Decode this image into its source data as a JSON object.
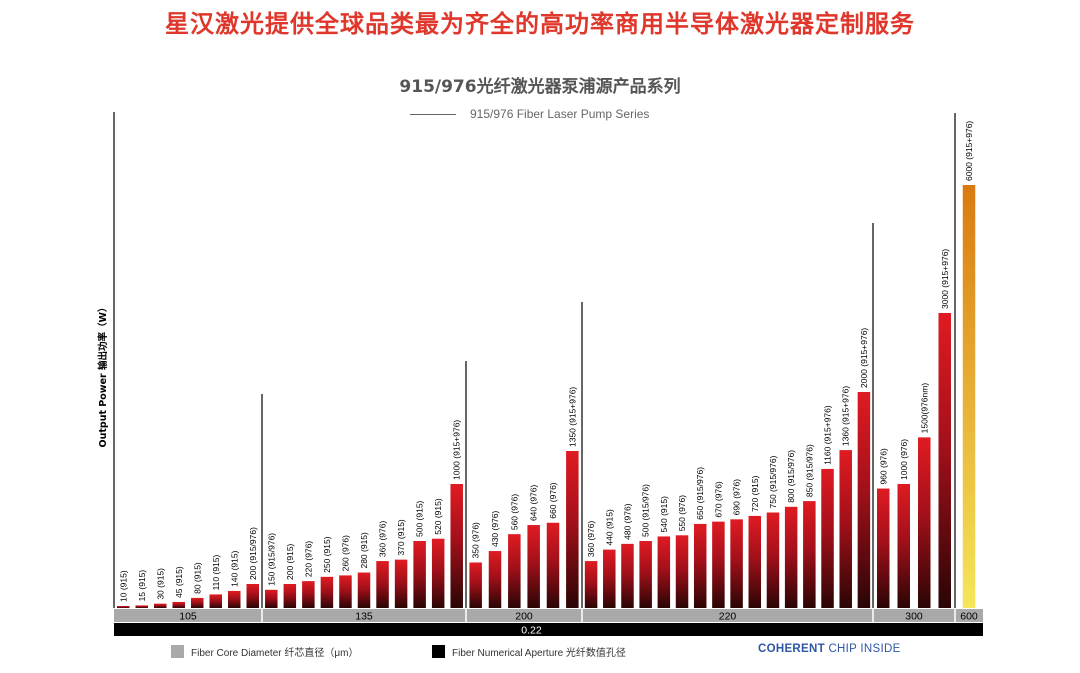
{
  "headline": "星汉激光提供全球品类最为齐全的高功率商用半导体激光器定制服务",
  "chart_data": {
    "type": "bar",
    "title": "915/976光纤激光器泵浦源产品系列",
    "subtitle": "915/976 Fiber Laser Pump Series",
    "ylabel": "Output Power  输出功率（W）",
    "numerical_aperture": "0.22",
    "groups": [
      {
        "core": "105",
        "bars": [
          {
            "value": 10,
            "label": "10 (915)"
          },
          {
            "value": 15,
            "label": "15 (915)"
          },
          {
            "value": 30,
            "label": "30 (915)"
          },
          {
            "value": 45,
            "label": "45 (915)"
          },
          {
            "value": 80,
            "label": "80 (915)"
          },
          {
            "value": 110,
            "label": "110 (915)"
          },
          {
            "value": 140,
            "label": "140 (915)"
          },
          {
            "value": 200,
            "label": "200 (915/976)"
          }
        ]
      },
      {
        "core": "135",
        "bars": [
          {
            "value": 150,
            "label": "150 (915/976)"
          },
          {
            "value": 200,
            "label": "200 (915)"
          },
          {
            "value": 220,
            "label": "220 (976)"
          },
          {
            "value": 250,
            "label": "250 (915)"
          },
          {
            "value": 260,
            "label": "260 (976)"
          },
          {
            "value": 280,
            "label": "280 (915)"
          },
          {
            "value": 360,
            "label": "360 (976)"
          },
          {
            "value": 370,
            "label": "370 (915)"
          },
          {
            "value": 500,
            "label": "500 (915)"
          },
          {
            "value": 520,
            "label": "520 (915)"
          },
          {
            "value": 1000,
            "label": "1000 (915+976)"
          }
        ]
      },
      {
        "core": "200",
        "bars": [
          {
            "value": 350,
            "label": "350 (976)"
          },
          {
            "value": 430,
            "label": "430 (976)"
          },
          {
            "value": 560,
            "label": "560 (976)"
          },
          {
            "value": 640,
            "label": "640 (976)"
          },
          {
            "value": 660,
            "label": "660 (976)"
          },
          {
            "value": 1350,
            "label": "1350 (915+976)"
          }
        ]
      },
      {
        "core": "220",
        "bars": [
          {
            "value": 360,
            "label": "360 (976)"
          },
          {
            "value": 440,
            "label": "440 (915)"
          },
          {
            "value": 480,
            "label": "480 (976)"
          },
          {
            "value": 500,
            "label": "500 (915/976)"
          },
          {
            "value": 540,
            "label": "540 (915)"
          },
          {
            "value": 550,
            "label": "550 (976)"
          },
          {
            "value": 650,
            "label": "650 (915/976)"
          },
          {
            "value": 670,
            "label": "670 (976)"
          },
          {
            "value": 690,
            "label": "690 (976)"
          },
          {
            "value": 720,
            "label": "720 (915)"
          },
          {
            "value": 750,
            "label": "750 (915/976)"
          },
          {
            "value": 800,
            "label": "800 (915/976)"
          },
          {
            "value": 850,
            "label": "850 (915/976)"
          },
          {
            "value": 1160,
            "label": "1160 (915+976)"
          },
          {
            "value": 1360,
            "label": "1360 (915+976)"
          },
          {
            "value": 2000,
            "label": "2000 (915+976)"
          }
        ]
      },
      {
        "core": "300",
        "bars": [
          {
            "value": 960,
            "label": "960 (976)"
          },
          {
            "value": 1000,
            "label": "1000 (976)"
          },
          {
            "value": 1500,
            "label": "1500(976nm)"
          },
          {
            "value": 3000,
            "label": "3000 (915+976)"
          }
        ]
      },
      {
        "core": "600",
        "bars": [
          {
            "value": 6000,
            "label": "6000 (915+976)",
            "highlight": true
          }
        ]
      }
    ],
    "grid": false,
    "legend_position": "bottom"
  },
  "legend": {
    "core_label": "Fiber Core Diameter  纤芯直径（μm）",
    "core_color": "#a9a9a9",
    "na_label": "Fiber Numerical Aperture  光纤数值孔径",
    "na_color": "#000000"
  },
  "brand": {
    "name": "COHERENT",
    "suffix": "CHIP INSIDE"
  },
  "colors": {
    "bar_top": "#e01b22",
    "bar_bottom": "#2a0505",
    "highlight_top": "#d97a10",
    "highlight_bottom": "#f5e65a",
    "headline": "#e0372c"
  }
}
